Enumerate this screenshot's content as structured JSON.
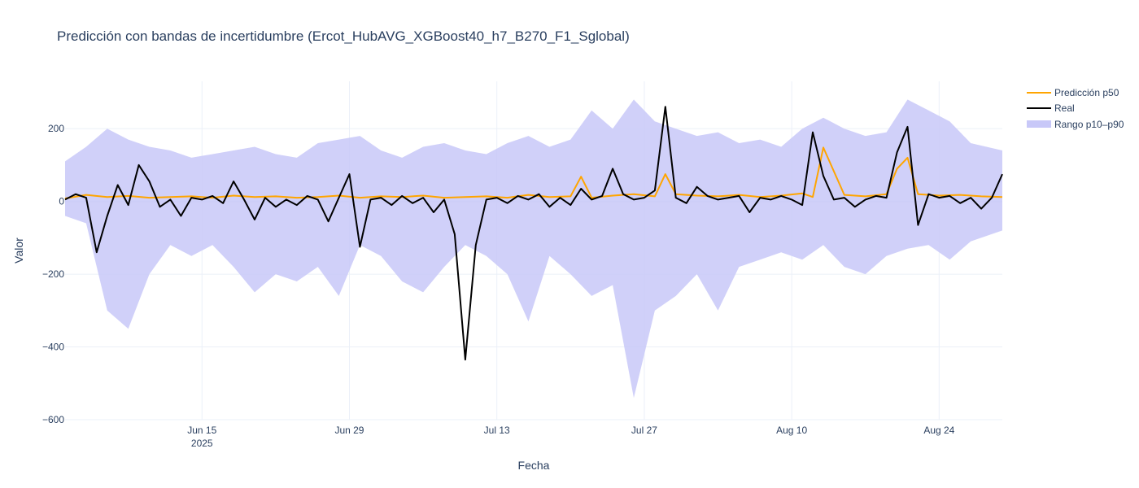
{
  "chart_data": {
    "type": "line",
    "title": "Predicción con bandas de incertidumbre (Ercot_HubAVG_XGBoost40_h7_B270_F1_Sglobal)",
    "xlabel": "Fecha",
    "ylabel": "Valor",
    "x_range": [
      "2025-06-02",
      "2025-08-30"
    ],
    "ylim": [
      -600,
      330
    ],
    "x_ticks": [
      {
        "date": "2025-06-15",
        "label": "Jun 15",
        "sublabel": "2025"
      },
      {
        "date": "2025-06-29",
        "label": "Jun 29",
        "sublabel": ""
      },
      {
        "date": "2025-07-13",
        "label": "Jul 13",
        "sublabel": ""
      },
      {
        "date": "2025-07-27",
        "label": "Jul 27",
        "sublabel": ""
      },
      {
        "date": "2025-08-10",
        "label": "Aug 10",
        "sublabel": ""
      },
      {
        "date": "2025-08-24",
        "label": "Aug 24",
        "sublabel": ""
      }
    ],
    "y_ticks": [
      {
        "value": 200,
        "label": "200"
      },
      {
        "value": 0,
        "label": "0"
      },
      {
        "value": -200,
        "label": "−200"
      },
      {
        "value": -400,
        "label": "−400"
      },
      {
        "value": -600,
        "label": "−600"
      }
    ],
    "grid": true,
    "legend_position": "top-right",
    "colors": {
      "p50": "#ffa500",
      "real": "#000000",
      "band": "#c8c8f8"
    },
    "series": [
      {
        "name": "Predicción p50",
        "kind": "line",
        "x": [
          "2025-06-02",
          "2025-06-04",
          "2025-06-06",
          "2025-06-08",
          "2025-06-10",
          "2025-06-12",
          "2025-06-14",
          "2025-06-16",
          "2025-06-18",
          "2025-06-20",
          "2025-06-22",
          "2025-06-24",
          "2025-06-26",
          "2025-06-28",
          "2025-06-30",
          "2025-07-02",
          "2025-07-04",
          "2025-07-06",
          "2025-07-08",
          "2025-07-10",
          "2025-07-12",
          "2025-07-14",
          "2025-07-16",
          "2025-07-18",
          "2025-07-20",
          "2025-07-21",
          "2025-07-22",
          "2025-07-24",
          "2025-07-26",
          "2025-07-28",
          "2025-07-29",
          "2025-07-30",
          "2025-08-01",
          "2025-08-03",
          "2025-08-05",
          "2025-08-07",
          "2025-08-09",
          "2025-08-11",
          "2025-08-12",
          "2025-08-13",
          "2025-08-15",
          "2025-08-17",
          "2025-08-19",
          "2025-08-20",
          "2025-08-21",
          "2025-08-22",
          "2025-08-24",
          "2025-08-26",
          "2025-08-28",
          "2025-08-30"
        ],
        "y": [
          8,
          18,
          12,
          15,
          10,
          12,
          14,
          10,
          16,
          12,
          14,
          10,
          12,
          16,
          10,
          14,
          12,
          16,
          10,
          12,
          14,
          10,
          18,
          12,
          14,
          68,
          10,
          16,
          20,
          14,
          75,
          20,
          16,
          14,
          18,
          12,
          16,
          22,
          12,
          148,
          18,
          14,
          20,
          90,
          120,
          20,
          16,
          18,
          14,
          12
        ]
      },
      {
        "name": "Real",
        "kind": "line",
        "x": [
          "2025-06-02",
          "2025-06-03",
          "2025-06-04",
          "2025-06-05",
          "2025-06-06",
          "2025-06-07",
          "2025-06-08",
          "2025-06-09",
          "2025-06-10",
          "2025-06-11",
          "2025-06-12",
          "2025-06-13",
          "2025-06-14",
          "2025-06-15",
          "2025-06-16",
          "2025-06-17",
          "2025-06-18",
          "2025-06-19",
          "2025-06-20",
          "2025-06-21",
          "2025-06-22",
          "2025-06-23",
          "2025-06-24",
          "2025-06-25",
          "2025-06-26",
          "2025-06-27",
          "2025-06-28",
          "2025-06-29",
          "2025-06-30",
          "2025-07-01",
          "2025-07-02",
          "2025-07-03",
          "2025-07-04",
          "2025-07-05",
          "2025-07-06",
          "2025-07-07",
          "2025-07-08",
          "2025-07-09",
          "2025-07-10",
          "2025-07-11",
          "2025-07-12",
          "2025-07-13",
          "2025-07-14",
          "2025-07-15",
          "2025-07-16",
          "2025-07-17",
          "2025-07-18",
          "2025-07-19",
          "2025-07-20",
          "2025-07-21",
          "2025-07-22",
          "2025-07-23",
          "2025-07-24",
          "2025-07-25",
          "2025-07-26",
          "2025-07-27",
          "2025-07-28",
          "2025-07-29",
          "2025-07-30",
          "2025-07-31",
          "2025-08-01",
          "2025-08-02",
          "2025-08-03",
          "2025-08-04",
          "2025-08-05",
          "2025-08-06",
          "2025-08-07",
          "2025-08-08",
          "2025-08-09",
          "2025-08-10",
          "2025-08-11",
          "2025-08-12",
          "2025-08-13",
          "2025-08-14",
          "2025-08-15",
          "2025-08-16",
          "2025-08-17",
          "2025-08-18",
          "2025-08-19",
          "2025-08-20",
          "2025-08-21",
          "2025-08-22",
          "2025-08-23",
          "2025-08-24",
          "2025-08-25",
          "2025-08-26",
          "2025-08-27",
          "2025-08-28",
          "2025-08-29",
          "2025-08-30"
        ],
        "y": [
          5,
          20,
          10,
          -140,
          -40,
          45,
          -10,
          100,
          55,
          -15,
          5,
          -40,
          10,
          5,
          15,
          -5,
          55,
          5,
          -50,
          10,
          -15,
          5,
          -10,
          15,
          5,
          -55,
          10,
          75,
          -125,
          5,
          10,
          -10,
          15,
          -5,
          10,
          -30,
          5,
          -90,
          -435,
          -120,
          5,
          10,
          -5,
          15,
          5,
          20,
          -15,
          10,
          -10,
          35,
          5,
          15,
          90,
          20,
          5,
          10,
          30,
          260,
          10,
          -5,
          40,
          15,
          5,
          10,
          15,
          -30,
          10,
          5,
          15,
          5,
          -10,
          190,
          70,
          5,
          10,
          -15,
          5,
          15,
          10,
          135,
          205,
          -65,
          20,
          10,
          15,
          -5,
          10,
          -20,
          10,
          75
        ]
      },
      {
        "name": "Rango p10–p90",
        "kind": "band",
        "x": [
          "2025-06-02",
          "2025-06-04",
          "2025-06-06",
          "2025-06-08",
          "2025-06-10",
          "2025-06-12",
          "2025-06-14",
          "2025-06-16",
          "2025-06-18",
          "2025-06-20",
          "2025-06-22",
          "2025-06-24",
          "2025-06-26",
          "2025-06-28",
          "2025-06-30",
          "2025-07-02",
          "2025-07-04",
          "2025-07-06",
          "2025-07-08",
          "2025-07-10",
          "2025-07-12",
          "2025-07-14",
          "2025-07-16",
          "2025-07-18",
          "2025-07-20",
          "2025-07-22",
          "2025-07-24",
          "2025-07-26",
          "2025-07-28",
          "2025-07-30",
          "2025-08-01",
          "2025-08-03",
          "2025-08-05",
          "2025-08-07",
          "2025-08-09",
          "2025-08-11",
          "2025-08-13",
          "2025-08-15",
          "2025-08-17",
          "2025-08-19",
          "2025-08-21",
          "2025-08-23",
          "2025-08-25",
          "2025-08-27",
          "2025-08-30"
        ],
        "low": [
          -40,
          -60,
          -300,
          -350,
          -200,
          -120,
          -150,
          -120,
          -180,
          -250,
          -200,
          -220,
          -180,
          -260,
          -120,
          -150,
          -220,
          -250,
          -180,
          -120,
          -150,
          -200,
          -330,
          -150,
          -200,
          -260,
          -230,
          -540,
          -300,
          -260,
          -200,
          -300,
          -180,
          -160,
          -140,
          -160,
          -120,
          -180,
          -200,
          -150,
          -130,
          -120,
          -160,
          -110,
          -80
        ],
        "high": [
          110,
          150,
          200,
          170,
          150,
          140,
          120,
          130,
          140,
          150,
          130,
          120,
          160,
          170,
          180,
          140,
          120,
          150,
          160,
          140,
          130,
          160,
          180,
          150,
          170,
          250,
          200,
          280,
          220,
          200,
          180,
          190,
          160,
          170,
          150,
          200,
          230,
          200,
          180,
          190,
          280,
          250,
          220,
          160,
          140
        ]
      }
    ]
  }
}
